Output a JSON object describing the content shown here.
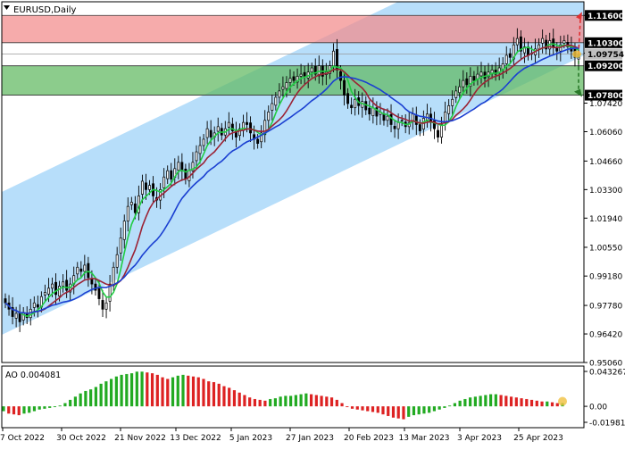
{
  "chart_title": "EURUSD,Daily",
  "indicator_label": "AO 0.004081",
  "colors": {
    "channel_fill": "#b3dcfa",
    "resistance_zone": "#f28b8b",
    "support_zone": "#5fb85f",
    "candle": "#000000",
    "ma_fast": "#22cc44",
    "ma_mid": "#9b2335",
    "ma_slow": "#1a3fd1",
    "ao_up": "#22aa22",
    "ao_down": "#dd2222",
    "arrow_up": "#e03030",
    "arrow_down": "#2a7a2a",
    "current_marker": "#f0c040"
  },
  "chart_data": {
    "type": "candlestick",
    "symbol": "EURUSD",
    "timeframe": "Daily",
    "ylim": [
      0.9506,
      1.1225
    ],
    "yticks": [
      1.116,
      1.098,
      1.0742,
      1.0606,
      1.0466,
      1.033,
      1.0194,
      1.0055,
      0.9918,
      0.9778,
      0.9642,
      0.9506
    ],
    "ytick_labels": [
      "1.11600",
      "1.09800",
      "1.07420",
      "1.06060",
      "1.04660",
      "1.03300",
      "1.01940",
      "1.00550",
      "0.99180",
      "0.97780",
      "0.96420",
      "0.95060"
    ],
    "xtick_labels": [
      "7 Oct 2022",
      "30 Oct 2022",
      "21 Nov 2022",
      "13 Dec 2022",
      "5 Jan 2023",
      "27 Jan 2023",
      "20 Feb 2023",
      "13 Mar 2023",
      "3 Apr 2023",
      "25 Apr 2023"
    ],
    "levels": [
      {
        "label": "1.11600",
        "value": 1.116
      },
      {
        "label": "1.10300",
        "value": 1.103
      },
      {
        "label": "1.09754",
        "value": 1.09754,
        "current": true
      },
      {
        "label": "1.09200",
        "value": 1.092
      },
      {
        "label": "1.07800",
        "value": 1.078
      }
    ],
    "zones": [
      {
        "name": "resistance",
        "from": 1.103,
        "to": 1.116
      },
      {
        "name": "support",
        "from": 1.078,
        "to": 1.092
      }
    ],
    "close": [
      0.979,
      0.976,
      0.9725,
      0.974,
      0.97,
      0.9745,
      0.972,
      0.976,
      0.979,
      0.977,
      0.982,
      0.984,
      0.986,
      0.988,
      0.983,
      0.987,
      0.989,
      0.985,
      0.988,
      0.992,
      0.996,
      0.994,
      0.997,
      0.991,
      0.988,
      0.985,
      0.981,
      0.976,
      0.979,
      0.988,
      0.996,
      1.002,
      1.01,
      1.018,
      1.025,
      1.027,
      1.022,
      1.03,
      1.037,
      1.033,
      1.035,
      1.03,
      1.028,
      1.033,
      1.039,
      1.042,
      1.038,
      1.043,
      1.046,
      1.042,
      1.038,
      1.042,
      1.046,
      1.051,
      1.054,
      1.057,
      1.062,
      1.058,
      1.06,
      1.063,
      1.059,
      1.062,
      1.065,
      1.061,
      1.058,
      1.062,
      1.065,
      1.064,
      1.06,
      1.057,
      1.055,
      1.06,
      1.066,
      1.07,
      1.074,
      1.077,
      1.08,
      1.082,
      1.084,
      1.086,
      1.085,
      1.087,
      1.088,
      1.087,
      1.089,
      1.091,
      1.088,
      1.092,
      1.087,
      1.089,
      1.092,
      1.099,
      1.09,
      1.085,
      1.078,
      1.074,
      1.072,
      1.076,
      1.073,
      1.075,
      1.071,
      1.069,
      1.072,
      1.068,
      1.07,
      1.066,
      1.068,
      1.064,
      1.062,
      1.065,
      1.066,
      1.063,
      1.065,
      1.069,
      1.064,
      1.061,
      1.067,
      1.069,
      1.065,
      1.062,
      1.058,
      1.064,
      1.07,
      1.073,
      1.076,
      1.08,
      1.082,
      1.085,
      1.083,
      1.087,
      1.085,
      1.088,
      1.089,
      1.086,
      1.089,
      1.09,
      1.088,
      1.091,
      1.093,
      1.097,
      1.096,
      1.102,
      1.105,
      1.099,
      1.101,
      1.097,
      1.098,
      1.1,
      1.102,
      1.105,
      1.1,
      1.104,
      1.101,
      1.099,
      1.102,
      1.104,
      1.101,
      1.099,
      1.096,
      1.0975
    ],
    "ao_values": [
      -0.006,
      -0.009,
      -0.01,
      -0.011,
      -0.009,
      -0.008,
      -0.006,
      -0.004,
      -0.003,
      -0.002,
      -0.001,
      0.001,
      0.004,
      0.008,
      0.012,
      0.016,
      0.019,
      0.021,
      0.024,
      0.028,
      0.031,
      0.034,
      0.037,
      0.039,
      0.04,
      0.041,
      0.043,
      0.043,
      0.042,
      0.041,
      0.039,
      0.036,
      0.034,
      0.036,
      0.038,
      0.039,
      0.038,
      0.037,
      0.036,
      0.034,
      0.031,
      0.03,
      0.028,
      0.025,
      0.023,
      0.02,
      0.017,
      0.014,
      0.011,
      0.009,
      0.008,
      0.007,
      0.009,
      0.01,
      0.012,
      0.013,
      0.013,
      0.014,
      0.015,
      0.016,
      0.015,
      0.014,
      0.013,
      0.012,
      0.011,
      0.008,
      0.004,
      -0.001,
      -0.003,
      -0.004,
      -0.005,
      -0.006,
      -0.007,
      -0.008,
      -0.01,
      -0.012,
      -0.014,
      -0.015,
      -0.016,
      -0.013,
      -0.011,
      -0.01,
      -0.009,
      -0.008,
      -0.006,
      -0.004,
      -0.002,
      0.001,
      0.004,
      0.007,
      0.009,
      0.011,
      0.012,
      0.013,
      0.014,
      0.015,
      0.015,
      0.014,
      0.013,
      0.012,
      0.011,
      0.01,
      0.009,
      0.008,
      0.007,
      0.006,
      0.006,
      0.005,
      0.004,
      0.004
    ],
    "ao_yticks": [
      0.043267,
      0.0,
      -0.019815
    ],
    "ao_ytick_labels": [
      "0.043267",
      "0.00",
      "-0.019815"
    ]
  }
}
